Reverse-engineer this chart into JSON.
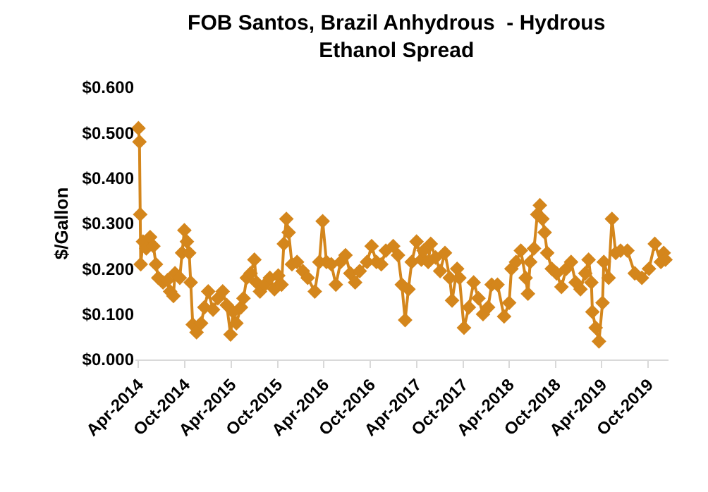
{
  "chart_data": {
    "type": "line",
    "title": "FOB Santos, Brazil Anhydrous  - Hydrous\nEthanol Spread",
    "ylabel": "$/Gallon",
    "xlim": [
      "2014-03-20",
      "2019-12-20"
    ],
    "ylim": [
      0,
      0.6
    ],
    "xticks": [
      {
        "value": "2014-04-01",
        "label": "Apr-2014"
      },
      {
        "value": "2014-10-01",
        "label": "Oct-2014"
      },
      {
        "value": "2015-04-01",
        "label": "Apr-2015"
      },
      {
        "value": "2015-10-01",
        "label": "Oct-2015"
      },
      {
        "value": "2016-04-01",
        "label": "Apr-2016"
      },
      {
        "value": "2016-10-01",
        "label": "Oct-2016"
      },
      {
        "value": "2017-04-01",
        "label": "Apr-2017"
      },
      {
        "value": "2017-10-01",
        "label": "Oct-2017"
      },
      {
        "value": "2018-04-01",
        "label": "Apr-2018"
      },
      {
        "value": "2018-10-01",
        "label": "Oct-2018"
      },
      {
        "value": "2019-04-01",
        "label": "Apr-2019"
      },
      {
        "value": "2019-10-01",
        "label": "Oct-2019"
      }
    ],
    "yticks": [
      {
        "value": 0,
        "label": "$0.000"
      },
      {
        "value": 0.1,
        "label": "$0.100"
      },
      {
        "value": 0.2,
        "label": "$0.200"
      },
      {
        "value": 0.3,
        "label": "$0.300"
      },
      {
        "value": 0.4,
        "label": "$0.400"
      },
      {
        "value": 0.5,
        "label": "$0.500"
      },
      {
        "value": 0.6,
        "label": "$0.600"
      }
    ],
    "grid": false,
    "marker": "diamond",
    "line_style": "solid",
    "series": [
      {
        "color": "#d4861c",
        "x": [
          "2014-04-01",
          "2014-04-05",
          "2014-04-08",
          "2014-04-10",
          "2014-04-19",
          "2014-05-02",
          "2014-05-17",
          "2014-05-30",
          "2014-06-09",
          "2014-06-18",
          "2014-07-07",
          "2014-07-25",
          "2014-08-04",
          "2014-08-17",
          "2014-08-23",
          "2014-09-11",
          "2014-09-20",
          "2014-09-29",
          "2014-10-09",
          "2014-10-18",
          "2014-10-24",
          "2014-11-01",
          "2014-11-16",
          "2014-12-04",
          "2014-12-17",
          "2015-01-01",
          "2015-01-20",
          "2015-02-08",
          "2015-02-27",
          "2015-03-15",
          "2015-03-30",
          "2015-04-09",
          "2015-04-22",
          "2015-05-10",
          "2015-05-20",
          "2015-06-02",
          "2015-06-17",
          "2015-07-02",
          "2015-07-10",
          "2015-07-24",
          "2015-08-12",
          "2015-09-01",
          "2015-09-19",
          "2015-10-04",
          "2015-10-17",
          "2015-10-26",
          "2015-11-05",
          "2015-11-14",
          "2015-11-27",
          "2015-12-17",
          "2016-01-09",
          "2016-01-28",
          "2016-02-25",
          "2016-03-14",
          "2016-03-27",
          "2016-04-11",
          "2016-04-30",
          "2016-05-18",
          "2016-06-06",
          "2016-06-25",
          "2016-07-14",
          "2016-08-02",
          "2016-08-20",
          "2016-09-18",
          "2016-10-06",
          "2016-10-25",
          "2016-11-13",
          "2016-12-01",
          "2016-12-30",
          "2017-01-18",
          "2017-02-02",
          "2017-02-15",
          "2017-02-28",
          "2017-03-13",
          "2017-04-01",
          "2017-04-20",
          "2017-04-29",
          "2017-05-17",
          "2017-05-27",
          "2017-06-15",
          "2017-07-03",
          "2017-07-22",
          "2017-08-10",
          "2017-08-19",
          "2017-09-08",
          "2017-09-17",
          "2017-10-05",
          "2017-10-24",
          "2017-11-12",
          "2017-12-01",
          "2017-12-19",
          "2018-01-08",
          "2018-01-22",
          "2018-02-14",
          "2018-03-12",
          "2018-04-01",
          "2018-04-10",
          "2018-04-28",
          "2018-05-17",
          "2018-06-05",
          "2018-06-14",
          "2018-06-23",
          "2018-07-08",
          "2018-07-21",
          "2018-07-31",
          "2018-08-10",
          "2018-08-19",
          "2018-08-29",
          "2018-09-16",
          "2018-10-05",
          "2018-10-24",
          "2018-11-12",
          "2018-12-01",
          "2018-12-19",
          "2019-01-07",
          "2019-01-26",
          "2019-02-08",
          "2019-02-19",
          "2019-02-23",
          "2019-03-08",
          "2019-03-21",
          "2019-04-04",
          "2019-04-09",
          "2019-04-28",
          "2019-05-11",
          "2019-05-26",
          "2019-06-14",
          "2019-07-11",
          "2019-08-09",
          "2019-09-06",
          "2019-10-04",
          "2019-10-27",
          "2019-11-20",
          "2019-12-01",
          "2019-12-08"
        ],
        "values": [
          0.51,
          0.48,
          0.32,
          0.21,
          0.26,
          0.245,
          0.27,
          0.25,
          0.21,
          0.18,
          0.17,
          0.175,
          0.15,
          0.14,
          0.19,
          0.18,
          0.235,
          0.285,
          0.26,
          0.235,
          0.17,
          0.077,
          0.06,
          0.08,
          0.115,
          0.15,
          0.11,
          0.135,
          0.15,
          0.12,
          0.055,
          0.105,
          0.08,
          0.115,
          0.135,
          0.18,
          0.19,
          0.22,
          0.17,
          0.15,
          0.165,
          0.18,
          0.155,
          0.185,
          0.165,
          0.255,
          0.31,
          0.28,
          0.21,
          0.215,
          0.195,
          0.18,
          0.15,
          0.215,
          0.305,
          0.215,
          0.21,
          0.165,
          0.215,
          0.23,
          0.19,
          0.17,
          0.195,
          0.215,
          0.25,
          0.215,
          0.21,
          0.24,
          0.25,
          0.23,
          0.165,
          0.087,
          0.155,
          0.215,
          0.26,
          0.22,
          0.24,
          0.215,
          0.255,
          0.225,
          0.195,
          0.235,
          0.18,
          0.13,
          0.2,
          0.18,
          0.07,
          0.115,
          0.17,
          0.135,
          0.1,
          0.115,
          0.165,
          0.165,
          0.095,
          0.125,
          0.2,
          0.215,
          0.24,
          0.18,
          0.145,
          0.215,
          0.245,
          0.32,
          0.34,
          0.31,
          0.28,
          0.235,
          0.2,
          0.19,
          0.16,
          0.2,
          0.215,
          0.17,
          0.155,
          0.19,
          0.22,
          0.17,
          0.105,
          0.07,
          0.04,
          0.125,
          0.215,
          0.18,
          0.31,
          0.235,
          0.24,
          0.24,
          0.19,
          0.18,
          0.2,
          0.255,
          0.215,
          0.235,
          0.22
        ]
      }
    ]
  }
}
